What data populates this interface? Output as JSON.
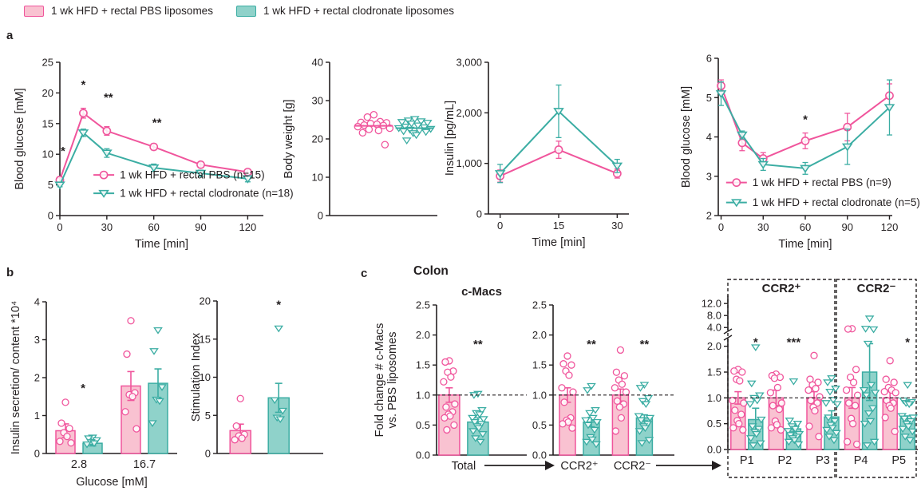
{
  "colors": {
    "pbs": {
      "stroke": "#F0559C",
      "fill": "#F9C2D1"
    },
    "clod": {
      "stroke": "#3BADA3",
      "fill": "#8FD2CA"
    },
    "axis": "#231F20"
  },
  "legend": {
    "items": [
      {
        "key": "pbs",
        "label": "1 wk HFD + rectal PBS liposomes"
      },
      {
        "key": "clod",
        "label": "1 wk HFD + rectal clodronate liposomes"
      }
    ]
  },
  "panels": {
    "a": "a",
    "b": "b",
    "c": "c",
    "colon_title": "Colon"
  },
  "chart_data": [
    {
      "id": "ogtt",
      "type": "line",
      "ylabel": "Blood glucose [mM]",
      "xlabel": "Time [min]",
      "ylim": [
        0,
        25
      ],
      "yticks": [
        0,
        5,
        10,
        15,
        20,
        25
      ],
      "ytick_labels": [
        "0",
        "5",
        "10",
        "15",
        "20",
        "25"
      ],
      "xlim": [
        0,
        130
      ],
      "xticks": [
        0,
        30,
        60,
        90,
        120
      ],
      "x": [
        0,
        15,
        30,
        60,
        90,
        120
      ],
      "series": [
        {
          "name": "1 wk HFD + rectal PBS (n=15)",
          "color_key": "pbs",
          "marker": "circle",
          "values": [
            5.8,
            16.7,
            13.8,
            11.2,
            8.3,
            7.1
          ],
          "errors": [
            0.3,
            0.8,
            0.7,
            0.5,
            0.4,
            0.4
          ]
        },
        {
          "name": "1 wk HFD + rectal clodronate (n=18)",
          "color_key": "clod",
          "marker": "triangle",
          "values": [
            5.0,
            13.5,
            10.2,
            7.8,
            6.9,
            6.0
          ],
          "errors": [
            0.3,
            0.6,
            0.7,
            0.6,
            0.5,
            0.5
          ]
        }
      ],
      "annotations": [
        {
          "x": 2,
          "y": 9.9,
          "label": "*"
        },
        {
          "x": 15,
          "y": 20.7,
          "label": "*"
        },
        {
          "x": 31,
          "y": 18.6,
          "label": "**"
        },
        {
          "x": 62,
          "y": 14.5,
          "label": "**"
        }
      ],
      "legend_inside": true
    },
    {
      "id": "body_weight",
      "type": "beeswarm",
      "ylabel": "Body weight [g]",
      "ylim": [
        0,
        40
      ],
      "yticks": [
        0,
        10,
        20,
        30,
        40
      ],
      "ytick_labels": [
        "0",
        "10",
        "20",
        "30",
        "40"
      ],
      "groups": [
        {
          "color_key": "pbs",
          "marker": "circle",
          "mean": 23.4,
          "values": [
            26.3,
            25.7,
            24.5,
            24.3,
            24.2,
            24.0,
            23.8,
            23.6,
            23.5,
            23.2,
            22.8,
            22.5,
            22.2,
            21.6,
            18.5
          ]
        },
        {
          "color_key": "clod",
          "marker": "triangle",
          "mean": 22.8,
          "values": [
            25.2,
            24.8,
            24.6,
            24.4,
            24.2,
            24.0,
            23.5,
            23.2,
            23.0,
            22.8,
            22.6,
            22.4,
            22.2,
            22.0,
            21.8,
            21.5,
            21.0,
            19.6
          ]
        }
      ]
    },
    {
      "id": "insulin",
      "type": "line",
      "ylabel": "Insulin [pg/mL]",
      "xlabel": "Time [min]",
      "ylim": [
        0,
        3000
      ],
      "yticks": [
        0,
        1000,
        2000,
        3000
      ],
      "ytick_labels": [
        "0",
        "1,000",
        "2,000",
        "3,000"
      ],
      "xlim": [
        -3,
        33
      ],
      "xticks": [
        0,
        15,
        30
      ],
      "x": [
        0,
        15,
        30
      ],
      "series": [
        {
          "name": "PBS",
          "color_key": "pbs",
          "marker": "circle",
          "values": [
            750,
            1270,
            800
          ],
          "errors": [
            120,
            170,
            90
          ]
        },
        {
          "name": "clodronate",
          "color_key": "clod",
          "marker": "triangle",
          "values": [
            800,
            2030,
            950
          ],
          "errors": [
            180,
            520,
            130
          ]
        }
      ],
      "annotations": []
    },
    {
      "id": "itt",
      "type": "line",
      "ylabel": "Blood glucose [mM]",
      "xlabel": "Time [min]",
      "ylim": [
        2,
        6
      ],
      "yticks": [
        2,
        3,
        4,
        5,
        6
      ],
      "ytick_labels": [
        "2",
        "3",
        "4",
        "5",
        "6"
      ],
      "xlim": [
        -2,
        122
      ],
      "xticks": [
        0,
        30,
        60,
        90,
        120
      ],
      "x": [
        0,
        15,
        30,
        60,
        90,
        120
      ],
      "series": [
        {
          "name": "1 wk HFD + rectal PBS (n=9)",
          "color_key": "pbs",
          "marker": "circle",
          "values": [
            5.3,
            3.85,
            3.45,
            3.9,
            4.25,
            5.05
          ],
          "errors": [
            0.15,
            0.2,
            0.15,
            0.2,
            0.35,
            0.3
          ]
        },
        {
          "name": "1 wk HFD + rectal clodronate (n=5)",
          "color_key": "clod",
          "marker": "triangle",
          "values": [
            5.1,
            4.05,
            3.3,
            3.2,
            3.75,
            4.75
          ],
          "errors": [
            0.3,
            0.1,
            0.15,
            0.15,
            0.45,
            0.7
          ]
        }
      ],
      "annotations": [
        {
          "x": 60,
          "y": 4.35,
          "label": "*"
        }
      ],
      "legend_inside": true
    },
    {
      "id": "insulin_secretion",
      "type": "bar",
      "ylabel": "Insulin secretion/ content *10⁴",
      "xlabel": "Glucose [mM]",
      "ylim": [
        0,
        4
      ],
      "yticks": [
        0,
        1,
        2,
        3,
        4
      ],
      "ytick_labels": [
        "0",
        "1",
        "2",
        "3",
        "4"
      ],
      "groups": [
        {
          "label": "2.8",
          "pbs": {
            "value": 0.6,
            "err": 0.18,
            "dots": [
              1.35,
              0.8,
              0.66,
              0.55,
              0.45,
              0.32,
              0.28
            ]
          },
          "clod": {
            "value": 0.27,
            "err": 0.07,
            "dots": [
              0.42,
              0.4,
              0.35,
              0.3,
              0.27,
              0.24
            ]
          },
          "sig": "*",
          "sig_y": 1.62
        },
        {
          "label": "16.7",
          "pbs": {
            "value": 1.78,
            "err": 0.38,
            "dots": [
              3.5,
              2.62,
              1.6,
              1.55,
              1.5,
              1.1,
              0.65
            ]
          },
          "clod": {
            "value": 1.85,
            "err": 0.38,
            "dots": [
              3.25,
              2.7,
              1.75,
              1.42,
              1.38,
              0.8
            ]
          }
        }
      ]
    },
    {
      "id": "stimulation_index",
      "type": "bar",
      "ylabel": "Stimulation Index",
      "ylim": [
        0,
        20
      ],
      "yticks": [
        0,
        5,
        10,
        15,
        20
      ],
      "ytick_labels": [
        "0",
        "5",
        "10",
        "15",
        "20"
      ],
      "groups": [
        {
          "label": "",
          "pbs": {
            "value": 3.0,
            "err": 0.85,
            "dots": [
              7.2,
              3.6,
              2.5,
              2.3,
              2.0,
              1.8
            ]
          },
          "clod": {
            "value": 7.3,
            "err": 1.9,
            "dots": [
              16.4,
              7.0,
              5.6,
              4.7,
              4.5
            ]
          },
          "sig": "*",
          "sig_y": 19.0
        }
      ]
    },
    {
      "id": "cmacs_total",
      "type": "bar",
      "title": "c-Macs",
      "ylabel": [
        "Fold change # c-Macs",
        "vs. PBS liposomes"
      ],
      "ylim": [
        0,
        2.5
      ],
      "yticks": [
        0,
        0.5,
        1.0,
        1.5,
        2.0,
        2.5
      ],
      "ytick_labels": [
        "0.0",
        "0.5",
        "1.0",
        "1.5",
        "2.0",
        "2.5"
      ],
      "ref_line": 1.0,
      "groups": [
        {
          "label": "Total",
          "pbs": {
            "value": 1.0,
            "err": 0.12,
            "dots": [
              1.57,
              1.55,
              1.4,
              1.38,
              1.3,
              1.22,
              0.85,
              0.8,
              0.72,
              0.68,
              0.65,
              0.62,
              0.5,
              0.42
            ]
          },
          "clod": {
            "value": 0.55,
            "err": 0.07,
            "dots": [
              1.02,
              1.0,
              0.75,
              0.7,
              0.68,
              0.62,
              0.6,
              0.55,
              0.52,
              0.48,
              0.45,
              0.4,
              0.35,
              0.28,
              0.22
            ]
          },
          "sig": "**",
          "sig_y": 1.78
        }
      ]
    },
    {
      "id": "cmacs_ccr2",
      "type": "bar",
      "ylim": [
        0,
        2.5
      ],
      "yticks": [
        0,
        0.5,
        1.0,
        1.5,
        2.0,
        2.5
      ],
      "ytick_labels": [
        "0.0",
        "0.5",
        "1.0",
        "1.5",
        "2.0",
        "2.5"
      ],
      "ref_line": 1.0,
      "groups": [
        {
          "label": "CCR2⁺",
          "pbs": {
            "value": 1.0,
            "err": 0.12,
            "dots": [
              1.65,
              1.52,
              1.5,
              1.4,
              1.33,
              1.12,
              1.05,
              0.88,
              0.62,
              0.58,
              0.55,
              0.52,
              0.45
            ]
          },
          "clod": {
            "value": 0.55,
            "err": 0.08,
            "dots": [
              1.15,
              1.08,
              0.75,
              0.7,
              0.62,
              0.58,
              0.55,
              0.5,
              0.42,
              0.3,
              0.26,
              0.22,
              0.18
            ]
          },
          "sig": "**",
          "sig_y": 1.78
        },
        {
          "label": "CCR2⁻",
          "pbs": {
            "value": 1.0,
            "err": 0.1,
            "dots": [
              1.75,
              1.38,
              1.32,
              1.25,
              1.18,
              1.12,
              1.05,
              0.9,
              0.85,
              0.8,
              0.62,
              0.4
            ]
          },
          "clod": {
            "value": 0.62,
            "err": 0.05,
            "dots": [
              1.17,
              1.12,
              0.95,
              0.9,
              0.85,
              0.65,
              0.62,
              0.58,
              0.52,
              0.48,
              0.45,
              0.4,
              0.25,
              0.2
            ]
          },
          "sig": "**",
          "sig_y": 1.78
        }
      ]
    },
    {
      "id": "cmacs_subsets",
      "type": "bar",
      "ylim": [
        0,
        2.15
      ],
      "yticks": [
        0,
        0.5,
        1.0,
        1.5,
        2.0
      ],
      "ytick_labels": [
        "0.0",
        "0.5",
        "1.0",
        "1.5",
        "2.0"
      ],
      "yticks_upper": [
        4.0,
        8.0,
        12.0
      ],
      "ytick_labels_upper": [
        "4.0",
        "8.0",
        "12.0"
      ],
      "ref_line": 1.0,
      "boxes": [
        {
          "label": "CCR2⁺",
          "groups": [
            0,
            2
          ]
        },
        {
          "label": "CCR2⁻",
          "groups": [
            3,
            4
          ]
        }
      ],
      "groups": [
        {
          "label": "P1",
          "pbs": {
            "value": 1.0,
            "err": 0.12,
            "dots": [
              1.55,
              1.52,
              1.5,
              1.36,
              1.33,
              0.95,
              0.9,
              0.76,
              0.68,
              0.56,
              0.5,
              0.42,
              0.38
            ]
          },
          "clod": {
            "value": 0.58,
            "err": 0.22,
            "dots": [
              1.98,
              1.28,
              1.05,
              1.0,
              0.95,
              0.88,
              0.58,
              0.45,
              0.4,
              0.34,
              0.3,
              0.22,
              0.12,
              0.08
            ]
          },
          "sig": "*",
          "sig_y": 2.0
        },
        {
          "label": "P2",
          "pbs": {
            "value": 1.0,
            "err": 0.15,
            "dots": [
              1.46,
              1.43,
              1.4,
              1.38,
              1.2,
              1.1,
              0.9,
              0.85,
              0.78,
              0.55,
              0.48,
              0.42,
              0.38
            ]
          },
          "clod": {
            "value": 0.4,
            "err": 0.06,
            "dots": [
              1.32,
              0.56,
              0.5,
              0.45,
              0.4,
              0.36,
              0.3,
              0.28,
              0.25,
              0.22,
              0.18,
              0.15,
              0.1
            ]
          },
          "sig": "***",
          "sig_y": 2.0
        },
        {
          "label": "P3",
          "pbs": {
            "value": 1.0,
            "err": 0.12,
            "dots": [
              1.82,
              1.36,
              1.3,
              1.25,
              1.18,
              1.15,
              1.02,
              0.95,
              0.9,
              0.82,
              0.75,
              0.45,
              0.25
            ]
          },
          "clod": {
            "value": 0.63,
            "err": 0.12,
            "dots": [
              1.38,
              1.3,
              1.18,
              1.12,
              0.96,
              0.9,
              0.88,
              0.62,
              0.55,
              0.48,
              0.42,
              0.38,
              0.32,
              0.25,
              0.18
            ]
          }
        },
        {
          "label": "P4",
          "pbs": {
            "value": 1.0,
            "err": 0.2,
            "dots": [
              3.6,
              3.5,
              1.55,
              1.4,
              1.3,
              1.15,
              1.05,
              0.9,
              0.85,
              0.6,
              0.5,
              0.15,
              0.1
            ]
          },
          "clod": {
            "value": 1.5,
            "err": 0.55,
            "dots": [
              7.0,
              3.6,
              3.4,
              2.05,
              1.25,
              1.15,
              1.1,
              1.05,
              0.8,
              0.7,
              0.55,
              0.5,
              0.15,
              0.08
            ]
          }
        },
        {
          "label": "P5",
          "pbs": {
            "value": 1.0,
            "err": 0.12,
            "dots": [
              1.72,
              1.36,
              1.3,
              1.2,
              1.15,
              1.12,
              1.1,
              0.95,
              0.9,
              0.85,
              0.8,
              0.62,
              0.35
            ]
          },
          "clod": {
            "value": 0.6,
            "err": 0.05,
            "dots": [
              1.25,
              0.95,
              0.92,
              0.9,
              0.88,
              0.65,
              0.62,
              0.6,
              0.55,
              0.5,
              0.45,
              0.4,
              0.35,
              0.25,
              0.18
            ]
          },
          "sig": "*",
          "sig_y": 2.0
        }
      ]
    }
  ]
}
